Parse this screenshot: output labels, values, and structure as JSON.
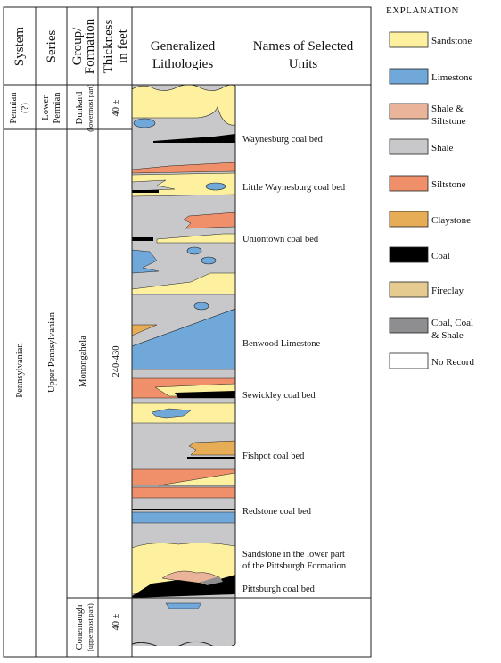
{
  "headers": {
    "system": "System",
    "series": "Series",
    "group": [
      "Group/",
      "Formation"
    ],
    "thickness": [
      "Thickness",
      "in feet"
    ],
    "lithologies": [
      "Generalized",
      "Lithologies"
    ],
    "names": [
      "Names of Selected",
      "Units"
    ]
  },
  "system": {
    "permian": [
      "Permian",
      "(?)"
    ],
    "pennsylvanian": "Pennsylvanian"
  },
  "series": {
    "lower_permian": [
      "Lower",
      "Permian"
    ],
    "upper_pennsylvanian": "Upper Pennsylvanian"
  },
  "formation": {
    "dunkard": "Dunkard",
    "dunkard_note": "(lowermost part)",
    "monongahela": "Monongahela",
    "conemaugh": "Conemaugh",
    "conemaugh_note": "(uppermost part)"
  },
  "thickness": {
    "dunkard": "40 ±",
    "monongahela": "240-430",
    "conemaugh": "40 ±"
  },
  "units": [
    [
      "Waynesburg coal bed"
    ],
    [
      "Little Waynesburg coal bed"
    ],
    [
      "Uniontown coal bed"
    ],
    [
      "Benwood Limestone"
    ],
    [
      "Sewickley coal bed"
    ],
    [
      "Fishpot coal bed"
    ],
    [
      "Redstone coal bed"
    ],
    [
      "Sandstone in the lower part",
      "of the Pittsburgh Formation"
    ],
    [
      "Pittsburgh coal bed"
    ]
  ],
  "legend": {
    "title": "EXPLANATION",
    "items": [
      {
        "label": [
          "Sandstone"
        ],
        "color": "#fdf19f"
      },
      {
        "label": [
          "Limestone"
        ],
        "color": "#6fa8d9"
      },
      {
        "label": [
          "Shale &",
          "Siltstone"
        ],
        "color": "#e9b49a"
      },
      {
        "label": [
          "Shale"
        ],
        "color": "#c8c8ca"
      },
      {
        "label": [
          "Siltstone"
        ],
        "color": "#f0906a"
      },
      {
        "label": [
          "Claystone"
        ],
        "color": "#e6ac56"
      },
      {
        "label": [
          "Coal"
        ],
        "color": "#000000"
      },
      {
        "label": [
          "Fireclay"
        ],
        "color": "#e5cb8f"
      },
      {
        "label": [
          "Coal, Coal",
          "& Shale"
        ],
        "color": "#8e8e90"
      },
      {
        "label": [
          "No Record"
        ],
        "color": "#ffffff"
      }
    ]
  }
}
